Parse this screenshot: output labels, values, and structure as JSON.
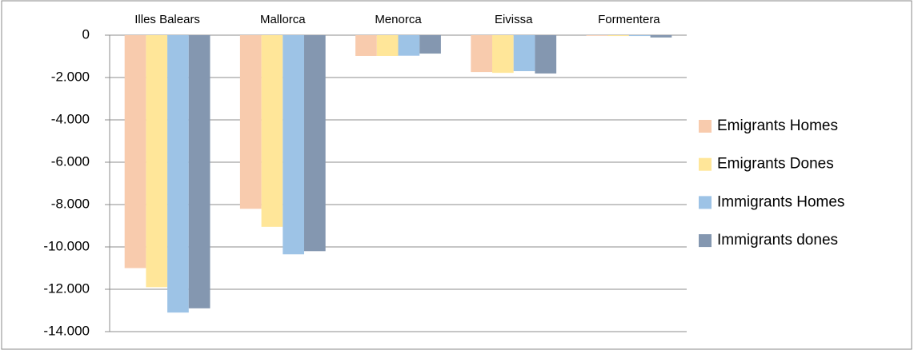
{
  "chart_data": {
    "type": "bar",
    "categories": [
      "Illes Balears",
      "Mallorca",
      "Menorca",
      "Eivissa",
      "Formentera"
    ],
    "series": [
      {
        "name": "Emigrants Homes",
        "color": "#f8cbad",
        "values": [
          -11000,
          -8200,
          -980,
          -1740,
          -30
        ]
      },
      {
        "name": "Emigrants Dones",
        "color": "#ffe699",
        "values": [
          -11900,
          -9050,
          -980,
          -1780,
          -40
        ]
      },
      {
        "name": "Immigrants Homes",
        "color": "#9dc3e6",
        "values": [
          -13100,
          -10350,
          -970,
          -1700,
          -40
        ]
      },
      {
        "name": "Immigrants dones",
        "color": "#8497b0",
        "values": [
          -12900,
          -10200,
          -870,
          -1810,
          -110
        ]
      }
    ],
    "ylim": [
      -14000,
      0
    ],
    "yticks": [
      0,
      {
        "value": -2000,
        "label": "-2.000"
      },
      {
        "value": -4000,
        "label": "-4.000"
      },
      {
        "value": -6000,
        "label": "-6.000"
      },
      {
        "value": -8000,
        "label": "-8.000"
      },
      {
        "value": -10000,
        "label": "-10.000"
      },
      {
        "value": -12000,
        "label": "-12.000"
      },
      {
        "value": -14000,
        "label": "-14.000"
      }
    ],
    "grid": true,
    "legend": "right"
  }
}
